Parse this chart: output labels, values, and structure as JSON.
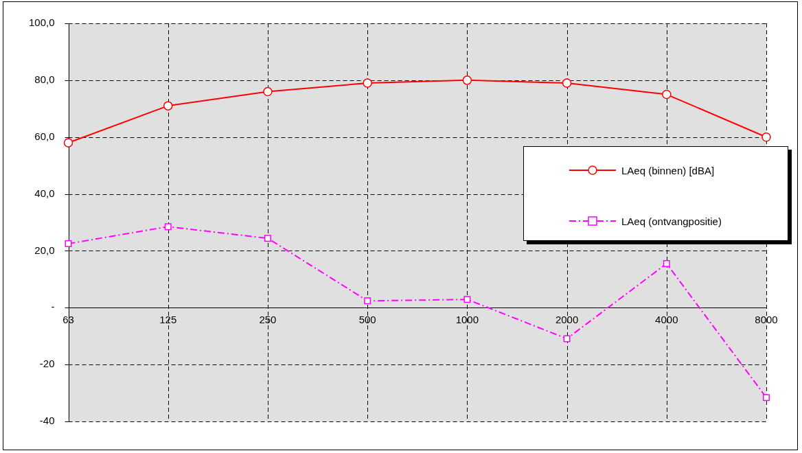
{
  "chart_data": {
    "type": "line",
    "categories": [
      "63",
      "125",
      "250",
      "500",
      "1000",
      "2000",
      "4000",
      "8000"
    ],
    "series": [
      {
        "name": "LAeq (binnen) [dBA]",
        "color": "#ff0000",
        "marker": "circle",
        "line_style": "solid",
        "values": [
          58,
          71,
          76,
          79,
          80,
          79,
          75,
          60
        ]
      },
      {
        "name": "LAeq (ontvangpositie)",
        "color": "#ff00ff",
        "marker": "square",
        "line_style": "dashed",
        "values": [
          22.5,
          28.5,
          24.4,
          2.4,
          2.9,
          -10.9,
          15.5,
          -31.6
        ]
      }
    ],
    "ylim": [
      -40,
      100
    ],
    "yticks": [
      {
        "value": -40,
        "label": "-40"
      },
      {
        "value": -20,
        "label": "-20"
      },
      {
        "value": 0,
        "label": "-"
      },
      {
        "value": 20,
        "label": "20,0"
      },
      {
        "value": 40,
        "label": "40,0"
      },
      {
        "value": 60,
        "label": "60,0"
      },
      {
        "value": 80,
        "label": "80,0"
      },
      {
        "value": 100,
        "label": "100,0"
      }
    ],
    "grid": true,
    "legend": "right"
  }
}
